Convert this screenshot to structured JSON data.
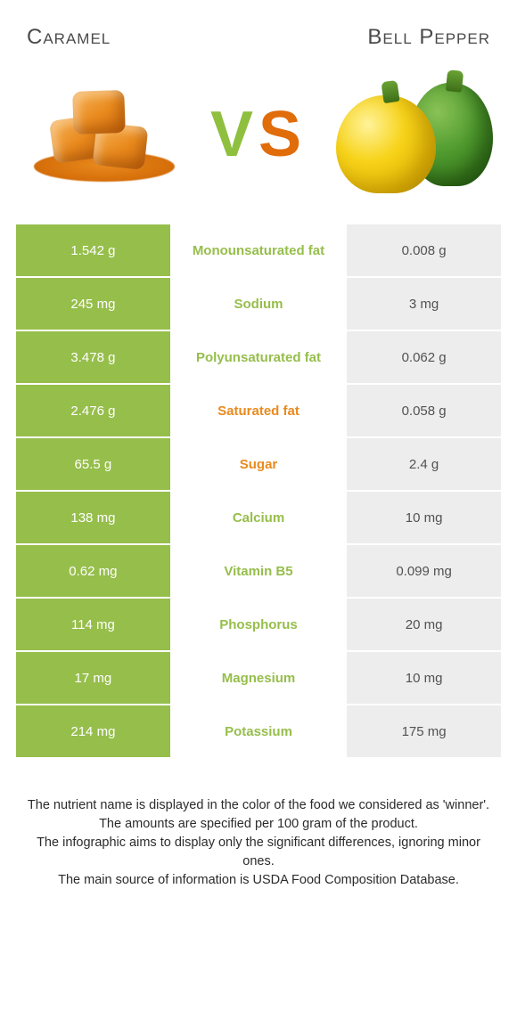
{
  "header": {
    "left_title": "Caramel",
    "right_title": "Bell Pepper",
    "vs_v": "V",
    "vs_s": "S"
  },
  "colors": {
    "left_cell_bg": "#96be4b",
    "right_cell_bg": "#ededed",
    "mid_cell_bg": "#ffffff",
    "left_text": "#ffffff",
    "right_text": "#525252",
    "nutrient_left_color": "#96be4b",
    "nutrient_right_color": "#e98a1d"
  },
  "rows": [
    {
      "left": "1.542 g",
      "label": "Monounsaturated fat",
      "right": "0.008 g",
      "winner": "left"
    },
    {
      "left": "245 mg",
      "label": "Sodium",
      "right": "3 mg",
      "winner": "left"
    },
    {
      "left": "3.478 g",
      "label": "Polyunsaturated fat",
      "right": "0.062 g",
      "winner": "left"
    },
    {
      "left": "2.476 g",
      "label": "Saturated fat",
      "right": "0.058 g",
      "winner": "right"
    },
    {
      "left": "65.5 g",
      "label": "Sugar",
      "right": "2.4 g",
      "winner": "right"
    },
    {
      "left": "138 mg",
      "label": "Calcium",
      "right": "10 mg",
      "winner": "left"
    },
    {
      "left": "0.62 mg",
      "label": "Vitamin B5",
      "right": "0.099 mg",
      "winner": "left"
    },
    {
      "left": "114 mg",
      "label": "Phosphorus",
      "right": "20 mg",
      "winner": "left"
    },
    {
      "left": "17 mg",
      "label": "Magnesium",
      "right": "10 mg",
      "winner": "left"
    },
    {
      "left": "214 mg",
      "label": "Potassium",
      "right": "175 mg",
      "winner": "left"
    }
  ],
  "notes": [
    "The nutrient name is displayed in the color of the food we considered as 'winner'.",
    "The amounts are specified per 100 gram of the product.",
    "The infographic aims to display only the significant differences, ignoring minor ones.",
    "The main source of information is USDA Food Composition Database."
  ]
}
